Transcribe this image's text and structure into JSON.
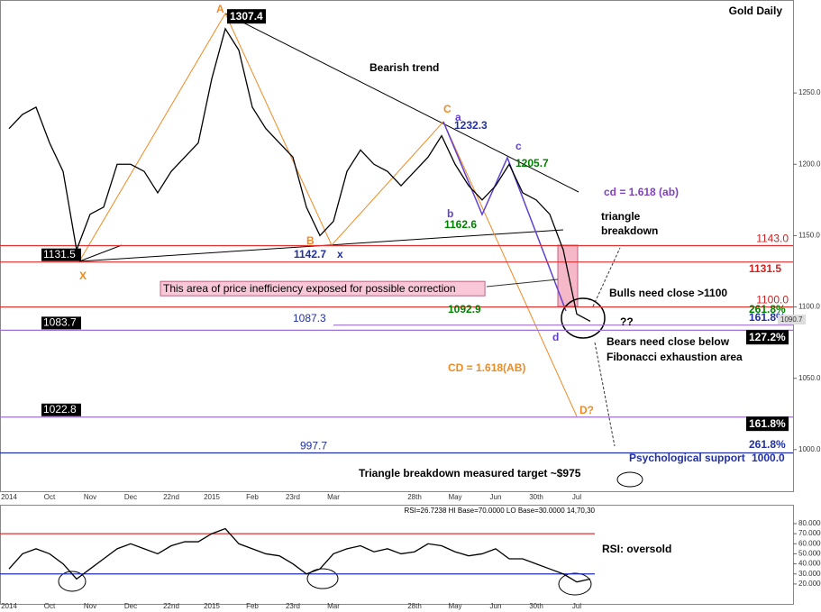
{
  "chart_data": [
    {
      "type": "line",
      "title": "Gold Daily",
      "categories": [
        "2014",
        null,
        null,
        "Oct",
        null,
        null,
        "Nov",
        null,
        null,
        "Dec",
        null,
        null,
        "22nd",
        null,
        null,
        "2015",
        null,
        null,
        "Feb",
        null,
        null,
        "23rd",
        null,
        null,
        "Mar",
        null,
        null,
        null,
        null,
        null,
        "28th",
        null,
        null,
        "May",
        null,
        null,
        "Jun",
        null,
        null,
        "30th",
        null,
        null,
        "Jul",
        null
      ],
      "values": [
        1225,
        1235,
        1240,
        1215,
        1195,
        1140,
        1165,
        1170,
        1200,
        1200,
        1195,
        1180,
        1195,
        1205,
        1215,
        1260,
        1295,
        1280,
        1240,
        1225,
        1215,
        1205,
        1170,
        1150,
        1160,
        1195,
        1210,
        1200,
        1195,
        1185,
        1195,
        1205,
        1220,
        1200,
        1185,
        1175,
        1185,
        1200,
        1180,
        1175,
        1165,
        1140,
        1095,
        1090
      ],
      "color": "#000000",
      "ylim": [
        974,
        1312
      ],
      "yticks": [
        {
          "value": 1000,
          "label": "1000.0"
        },
        {
          "value": 1050,
          "label": "1050.0"
        },
        {
          "value": 1100,
          "label": "1100.0"
        },
        {
          "value": 1150,
          "label": "1150.0"
        },
        {
          "value": 1200,
          "label": "1200.0"
        },
        {
          "value": 1250,
          "label": "1250.0"
        }
      ],
      "levels": [
        {
          "value": 1143,
          "label": "1143.0",
          "color": "#e03030"
        },
        {
          "value": 1131.5,
          "label": "1131.5",
          "color": "#e03030"
        },
        {
          "value": 1100,
          "label": "1100.0",
          "color": "#e03030"
        },
        {
          "value": 1087.3,
          "label": "1087.3",
          "color": "#a070d0"
        },
        {
          "value": 1083.7,
          "label": "1083.7",
          "color": "#a070d0"
        },
        {
          "value": 1022.8,
          "label": "1022.8",
          "color": "#a070d0"
        },
        {
          "value": 997.7,
          "label": "997.7",
          "color": "#2030a0"
        }
      ],
      "annotations": [
        "A",
        "1307.4",
        "Bearish trend",
        "C",
        "a",
        "1232.3",
        "c",
        "1205.7",
        "b",
        "1162.6",
        "cd = 1.618 (ab)",
        "triangle",
        "breakdown",
        "B",
        "1142.7",
        "x",
        "X",
        "This area of price inefficiency exposed for possible correction",
        "Bulls need close >1100",
        "1092.9",
        "261.8%",
        "161.8%",
        "1090.7",
        "??",
        "d",
        "Bears need close below",
        "Fibonacci exhaustion area",
        "CD = 1.618(AB)",
        "D?",
        "127.2%",
        "161.8%",
        "261.8%",
        "Psychological support",
        "1000.0",
        "Triangle breakdown measured target ~$975",
        "1131.5"
      ]
    },
    {
      "type": "line",
      "title": "RSI=26.7238 HI Base=70.0000 LO Base=30.0000 14,70,30",
      "categories": [
        "2014",
        null,
        null,
        "Oct",
        null,
        null,
        "Nov",
        null,
        null,
        "Dec",
        null,
        null,
        "22nd",
        null,
        null,
        "2015",
        null,
        null,
        "Feb",
        null,
        null,
        "23rd",
        null,
        null,
        "Mar",
        null,
        null,
        null,
        null,
        null,
        "28th",
        null,
        null,
        "May",
        null,
        null,
        "Jun",
        null,
        null,
        "30th",
        null,
        null,
        "Jul",
        null
      ],
      "values": [
        35,
        50,
        55,
        50,
        40,
        25,
        35,
        45,
        55,
        60,
        55,
        50,
        58,
        62,
        62,
        70,
        75,
        60,
        55,
        50,
        48,
        40,
        30,
        35,
        50,
        55,
        58,
        52,
        55,
        50,
        52,
        60,
        58,
        52,
        48,
        50,
        55,
        45,
        45,
        40,
        35,
        30,
        22,
        25
      ],
      "color": "#000000",
      "ylim": [
        2,
        97
      ],
      "yticks": [
        {
          "value": 20,
          "label": "20.0000"
        },
        {
          "value": 30,
          "label": "30.0000"
        },
        {
          "value": 40,
          "label": "40.0000"
        },
        {
          "value": 50,
          "label": "50.0000"
        },
        {
          "value": 60,
          "label": "60.0000"
        },
        {
          "value": 70,
          "label": "70.0000"
        },
        {
          "value": 80,
          "label": "80.0000"
        }
      ],
      "levels": [
        {
          "value": 70,
          "color": "#e03030"
        },
        {
          "value": 30,
          "color": "#2030c0"
        }
      ],
      "annotations": [
        "RSI: oversold"
      ]
    }
  ]
}
